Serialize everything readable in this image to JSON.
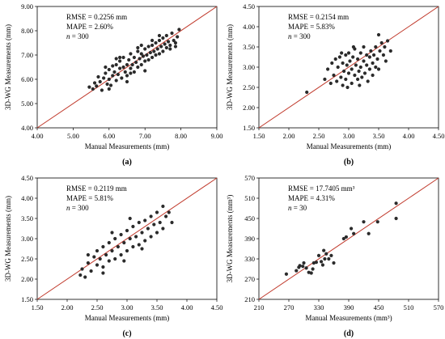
{
  "chart_data": [
    {
      "id": "a",
      "type": "scatter",
      "panel_label": "(a)",
      "xlabel": "Manual Measurements (mm)",
      "ylabel": "3D-WG Measurements (mm)",
      "xlim": [
        4.0,
        9.0
      ],
      "ylim": [
        4.0,
        9.0
      ],
      "xticks": [
        "4.00",
        "5.00",
        "6.00",
        "7.00",
        "8.00",
        "9.00"
      ],
      "yticks": [
        "4.00",
        "5.00",
        "6.00",
        "7.00",
        "8.00",
        "9.00"
      ],
      "annotations": {
        "rmse": "RMSE = 0.2256 mm",
        "mape": "MAPE = 2.60%",
        "n_prefix": "n",
        "n_suffix": " = 300"
      },
      "reference_line": "y = x",
      "line_color": "#c0392b",
      "point_color": "#2b2b2b",
      "points": [
        [
          5.45,
          5.68
        ],
        [
          5.55,
          5.6
        ],
        [
          5.6,
          5.85
        ],
        [
          5.65,
          5.72
        ],
        [
          5.7,
          6.1
        ],
        [
          5.75,
          5.9
        ],
        [
          5.8,
          5.55
        ],
        [
          5.85,
          6.05
        ],
        [
          5.9,
          6.25
        ],
        [
          5.95,
          5.8
        ],
        [
          6.0,
          6.0
        ],
        [
          6.0,
          6.4
        ],
        [
          6.05,
          5.75
        ],
        [
          6.1,
          6.15
        ],
        [
          6.1,
          6.55
        ],
        [
          6.15,
          6.3
        ],
        [
          6.2,
          5.95
        ],
        [
          6.2,
          6.6
        ],
        [
          6.25,
          6.2
        ],
        [
          6.3,
          6.45
        ],
        [
          6.3,
          6.75
        ],
        [
          6.35,
          6.05
        ],
        [
          6.4,
          6.5
        ],
        [
          6.4,
          6.9
        ],
        [
          6.45,
          6.3
        ],
        [
          6.5,
          6.6
        ],
        [
          6.5,
          6.15
        ],
        [
          6.55,
          6.8
        ],
        [
          6.6,
          6.45
        ],
        [
          6.6,
          7.05
        ],
        [
          6.65,
          6.6
        ],
        [
          6.7,
          6.3
        ],
        [
          6.7,
          6.9
        ],
        [
          6.75,
          6.7
        ],
        [
          6.8,
          6.5
        ],
        [
          6.8,
          7.15
        ],
        [
          6.85,
          6.85
        ],
        [
          6.9,
          6.6
        ],
        [
          6.9,
          7.05
        ],
        [
          6.95,
          6.95
        ],
        [
          7.0,
          6.75
        ],
        [
          7.0,
          7.25
        ],
        [
          7.05,
          7.0
        ],
        [
          7.1,
          6.8
        ],
        [
          7.1,
          7.35
        ],
        [
          7.15,
          7.1
        ],
        [
          7.2,
          6.9
        ],
        [
          7.2,
          7.4
        ],
        [
          7.25,
          7.15
        ],
        [
          7.3,
          7.0
        ],
        [
          7.3,
          7.5
        ],
        [
          7.35,
          7.25
        ],
        [
          7.4,
          7.05
        ],
        [
          7.4,
          7.6
        ],
        [
          7.45,
          7.35
        ],
        [
          7.5,
          7.15
        ],
        [
          7.5,
          7.7
        ],
        [
          7.55,
          7.45
        ],
        [
          7.6,
          7.3
        ],
        [
          7.6,
          7.8
        ],
        [
          7.65,
          7.55
        ],
        [
          7.7,
          7.4
        ],
        [
          7.75,
          7.9
        ],
        [
          7.8,
          7.6
        ],
        [
          7.85,
          7.5
        ],
        [
          7.9,
          7.75
        ],
        [
          7.95,
          8.05
        ],
        [
          7.85,
          7.35
        ],
        [
          7.0,
          6.35
        ],
        [
          6.5,
          5.9
        ],
        [
          6.0,
          5.6
        ],
        [
          6.3,
          6.9
        ],
        [
          6.8,
          7.3
        ],
        [
          7.2,
          7.6
        ],
        [
          6.6,
          6.25
        ],
        [
          6.9,
          7.4
        ],
        [
          7.4,
          7.8
        ],
        [
          6.2,
          6.85
        ],
        [
          5.9,
          6.5
        ],
        [
          7.7,
          7.25
        ]
      ]
    },
    {
      "id": "b",
      "type": "scatter",
      "panel_label": "(b)",
      "xlabel": "Manual Measurements (mm)",
      "ylabel": "3D-WG Measurements (mm)",
      "xlim": [
        1.5,
        4.5
      ],
      "ylim": [
        1.5,
        4.5
      ],
      "xticks": [
        "1.50",
        "2.00",
        "2.50",
        "3.00",
        "3.50",
        "4.00",
        "4.50"
      ],
      "yticks": [
        "1.50",
        "2.00",
        "2.50",
        "3.00",
        "3.50",
        "4.00",
        "4.50"
      ],
      "annotations": {
        "rmse": "RMSE = 0.2154 mm",
        "mape": "MAPE = 5.83%",
        "n_prefix": "n",
        "n_suffix": " = 300"
      },
      "reference_line": "y = x",
      "line_color": "#c0392b",
      "point_color": "#2b2b2b",
      "points": [
        [
          2.3,
          2.38
        ],
        [
          2.6,
          2.7
        ],
        [
          2.65,
          2.95
        ],
        [
          2.7,
          2.6
        ],
        [
          2.72,
          3.1
        ],
        [
          2.75,
          2.8
        ],
        [
          2.78,
          3.2
        ],
        [
          2.8,
          2.65
        ],
        [
          2.82,
          3.0
        ],
        [
          2.85,
          3.25
        ],
        [
          2.87,
          2.75
        ],
        [
          2.9,
          3.1
        ],
        [
          2.9,
          2.55
        ],
        [
          2.92,
          2.9
        ],
        [
          2.95,
          3.3
        ],
        [
          2.95,
          2.7
        ],
        [
          2.97,
          3.05
        ],
        [
          3.0,
          2.85
        ],
        [
          3.0,
          3.35
        ],
        [
          3.02,
          3.15
        ],
        [
          3.05,
          2.6
        ],
        [
          3.05,
          2.95
        ],
        [
          3.07,
          3.25
        ],
        [
          3.1,
          2.8
        ],
        [
          3.1,
          3.45
        ],
        [
          3.12,
          3.05
        ],
        [
          3.15,
          2.7
        ],
        [
          3.15,
          3.2
        ],
        [
          3.17,
          2.9
        ],
        [
          3.2,
          3.35
        ],
        [
          3.2,
          3.0
        ],
        [
          3.22,
          2.75
        ],
        [
          3.25,
          3.15
        ],
        [
          3.25,
          3.5
        ],
        [
          3.27,
          2.85
        ],
        [
          3.3,
          3.3
        ],
        [
          3.3,
          3.05
        ],
        [
          3.32,
          2.65
        ],
        [
          3.35,
          3.25
        ],
        [
          3.35,
          2.95
        ],
        [
          3.37,
          3.4
        ],
        [
          3.4,
          3.1
        ],
        [
          3.4,
          2.8
        ],
        [
          3.42,
          3.3
        ],
        [
          3.45,
          3.0
        ],
        [
          3.45,
          3.5
        ],
        [
          3.48,
          3.2
        ],
        [
          3.5,
          3.8
        ],
        [
          3.5,
          2.95
        ],
        [
          3.52,
          3.4
        ],
        [
          3.55,
          3.6
        ],
        [
          3.58,
          3.3
        ],
        [
          3.6,
          3.5
        ],
        [
          3.62,
          3.15
        ],
        [
          3.65,
          3.65
        ],
        [
          3.7,
          3.4
        ],
        [
          2.88,
          3.35
        ],
        [
          3.08,
          3.5
        ],
        [
          2.98,
          2.5
        ],
        [
          3.18,
          2.55
        ]
      ]
    },
    {
      "id": "c",
      "type": "scatter",
      "panel_label": "(c)",
      "xlabel": "Manual Measurements (mm)",
      "ylabel": "3D-WG Measurements (mm)",
      "xlim": [
        1.5,
        4.5
      ],
      "ylim": [
        1.5,
        4.5
      ],
      "xticks": [
        "1.50",
        "2.00",
        "2.50",
        "3.00",
        "3.50",
        "4.00",
        "4.50"
      ],
      "yticks": [
        "1.50",
        "2.00",
        "2.50",
        "3.00",
        "3.50",
        "4.00",
        "4.50"
      ],
      "annotations": {
        "rmse": "RMSE = 0.2119 mm",
        "mape": "MAPE = 5.81%",
        "n_prefix": "n",
        "n_suffix": " = 300"
      },
      "reference_line": "y = x",
      "line_color": "#c0392b",
      "point_color": "#2b2b2b",
      "points": [
        [
          2.22,
          2.1
        ],
        [
          2.25,
          2.25
        ],
        [
          2.3,
          2.05
        ],
        [
          2.35,
          2.4
        ],
        [
          2.4,
          2.2
        ],
        [
          2.45,
          2.55
        ],
        [
          2.5,
          2.35
        ],
        [
          2.5,
          2.7
        ],
        [
          2.55,
          2.5
        ],
        [
          2.6,
          2.3
        ],
        [
          2.6,
          2.8
        ],
        [
          2.65,
          2.6
        ],
        [
          2.7,
          2.45
        ],
        [
          2.7,
          2.9
        ],
        [
          2.75,
          2.7
        ],
        [
          2.8,
          2.5
        ],
        [
          2.8,
          3.0
        ],
        [
          2.85,
          2.8
        ],
        [
          2.9,
          2.6
        ],
        [
          2.9,
          3.1
        ],
        [
          2.95,
          2.9
        ],
        [
          3.0,
          2.7
        ],
        [
          3.0,
          3.2
        ],
        [
          3.05,
          3.0
        ],
        [
          3.1,
          2.8
        ],
        [
          3.1,
          3.3
        ],
        [
          3.15,
          3.05
        ],
        [
          3.2,
          2.85
        ],
        [
          3.2,
          3.4
        ],
        [
          3.25,
          3.15
        ],
        [
          3.3,
          2.95
        ],
        [
          3.3,
          3.45
        ],
        [
          3.35,
          3.25
        ],
        [
          3.4,
          3.05
        ],
        [
          3.4,
          3.55
        ],
        [
          3.45,
          3.35
        ],
        [
          3.5,
          3.15
        ],
        [
          3.5,
          3.65
        ],
        [
          3.55,
          3.4
        ],
        [
          3.6,
          3.8
        ],
        [
          3.6,
          3.25
        ],
        [
          3.65,
          3.55
        ],
        [
          3.7,
          3.65
        ],
        [
          3.75,
          3.4
        ],
        [
          2.35,
          2.6
        ],
        [
          2.6,
          2.15
        ],
        [
          2.95,
          2.45
        ],
        [
          3.25,
          2.75
        ],
        [
          3.05,
          3.5
        ],
        [
          2.75,
          3.15
        ]
      ]
    },
    {
      "id": "d",
      "type": "scatter",
      "panel_label": "(d)",
      "xlabel": "Manual Measurements (mm³)",
      "ylabel": "3D-WG Measurements (mm³)",
      "xlim": [
        210,
        570
      ],
      "ylim": [
        210,
        570
      ],
      "xticks": [
        "210",
        "270",
        "330",
        "390",
        "450",
        "510",
        "570"
      ],
      "yticks": [
        "210",
        "270",
        "330",
        "390",
        "450",
        "510",
        "570"
      ],
      "annotations": {
        "rmse": "RMSE = 17.7405 mm³",
        "mape": "MAPE = 4.31%",
        "n_prefix": "n",
        "n_suffix": " = 30"
      },
      "reference_line": "y = x",
      "line_color": "#c0392b",
      "point_color": "#2b2b2b",
      "points": [
        [
          265,
          285
        ],
        [
          285,
          295
        ],
        [
          290,
          305
        ],
        [
          292,
          310
        ],
        [
          298,
          308
        ],
        [
          300,
          318
        ],
        [
          305,
          303
        ],
        [
          310,
          290
        ],
        [
          315,
          288
        ],
        [
          318,
          300
        ],
        [
          320,
          318
        ],
        [
          325,
          320
        ],
        [
          330,
          340
        ],
        [
          335,
          322
        ],
        [
          338,
          312
        ],
        [
          340,
          355
        ],
        [
          342,
          330
        ],
        [
          345,
          345
        ],
        [
          350,
          330
        ],
        [
          355,
          340
        ],
        [
          360,
          318
        ],
        [
          380,
          390
        ],
        [
          385,
          395
        ],
        [
          395,
          420
        ],
        [
          400,
          405
        ],
        [
          420,
          440
        ],
        [
          430,
          405
        ],
        [
          448,
          440
        ],
        [
          485,
          495
        ],
        [
          485,
          450
        ]
      ]
    }
  ]
}
